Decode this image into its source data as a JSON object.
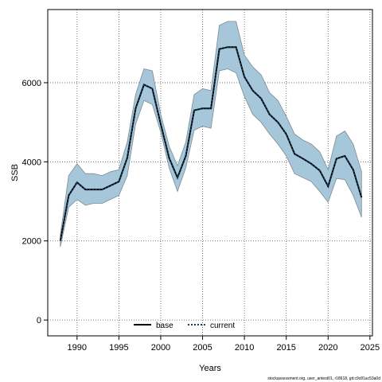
{
  "chart_data": {
    "type": "line",
    "xlabel": "Years",
    "ylabel": "SSB",
    "xlim": [
      1986.5,
      2025.3
    ],
    "ylim": [
      -400,
      7850
    ],
    "x_ticks": [
      1990,
      1995,
      2000,
      2005,
      2010,
      2015,
      2020,
      2025
    ],
    "y_ticks": [
      0,
      2000,
      4000,
      6000
    ],
    "grid": true,
    "legend_position": "bottom-center",
    "colors": {
      "band_fill": "#a5c7d9",
      "band_edge": "#7f8a92",
      "line": "#000000",
      "current": "#1d3d56",
      "grid": "#555555"
    },
    "x": [
      1988,
      1989,
      1990,
      1991,
      1992,
      1993,
      1994,
      1995,
      1996,
      1997,
      1998,
      1999,
      2000,
      2001,
      2002,
      2003,
      2004,
      2005,
      2006,
      2007,
      2008,
      2009,
      2010,
      2011,
      2012,
      2013,
      2014,
      2015,
      2016,
      2017,
      2018,
      2019,
      2020,
      2021,
      2022,
      2023,
      2024
    ],
    "band_upper": [
      2150,
      3650,
      3950,
      3700,
      3700,
      3650,
      3750,
      3800,
      4500,
      5700,
      6350,
      6300,
      5200,
      4400,
      3900,
      4500,
      5700,
      5850,
      5800,
      7450,
      7550,
      7550,
      6700,
      6400,
      6200,
      5750,
      5550,
      5150,
      4700,
      4550,
      4450,
      4250,
      3800,
      4650,
      4780,
      4450,
      3750
    ],
    "band_lower": [
      1850,
      2850,
      3050,
      2900,
      2950,
      2950,
      3050,
      3150,
      3650,
      4950,
      5550,
      5450,
      4750,
      3850,
      3250,
      3850,
      4800,
      4900,
      4850,
      6300,
      6350,
      6250,
      5650,
      5200,
      5000,
      4700,
      4450,
      4150,
      3700,
      3600,
      3500,
      3250,
      2980,
      3580,
      3550,
      3150,
      2600
    ],
    "series": [
      {
        "name": "base",
        "style": "solid",
        "values": [
          2000,
          3150,
          3480,
          3300,
          3300,
          3300,
          3400,
          3500,
          4100,
          5350,
          5950,
          5850,
          4950,
          4100,
          3600,
          4150,
          5300,
          5350,
          5350,
          6850,
          6900,
          6900,
          6150,
          5800,
          5600,
          5200,
          5000,
          4700,
          4200,
          4080,
          3950,
          3780,
          3380,
          4080,
          4150,
          3800,
          3100
        ]
      },
      {
        "name": "current",
        "style": "dotted",
        "values": [
          2000,
          3150,
          3480,
          3300,
          3300,
          3300,
          3400,
          3500,
          4100,
          5350,
          5950,
          5850,
          4950,
          4100,
          3600,
          4150,
          5300,
          5350,
          5350,
          6850,
          6900,
          6900,
          6150,
          5800,
          5600,
          5200,
          5000,
          4700,
          4200,
          4080,
          3950,
          3780,
          3380,
          4080,
          4150,
          3800,
          3100
        ]
      }
    ],
    "footer": "stockassessment.org, user_antest01, r18618, git:c9c81ac53a0d"
  }
}
